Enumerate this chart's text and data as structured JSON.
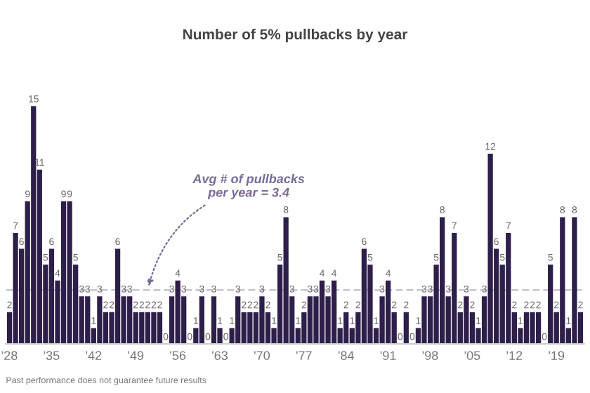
{
  "chart_data": {
    "type": "bar",
    "title": "Number of 5% pullbacks by year",
    "categories": [
      "'28",
      null,
      null,
      null,
      null,
      null,
      null,
      "'35",
      null,
      null,
      null,
      null,
      null,
      null,
      "'42",
      null,
      null,
      null,
      null,
      null,
      null,
      "'49",
      null,
      null,
      null,
      null,
      null,
      null,
      "'56",
      null,
      null,
      null,
      null,
      null,
      null,
      "'63",
      null,
      null,
      null,
      null,
      null,
      null,
      "'70",
      null,
      null,
      null,
      null,
      null,
      null,
      "'77",
      null,
      null,
      null,
      null,
      null,
      null,
      "'84",
      null,
      null,
      null,
      null,
      null,
      null,
      "'91",
      null,
      null,
      null,
      null,
      null,
      null,
      "'98",
      null,
      null,
      null,
      null,
      null,
      null,
      "'05",
      null,
      null,
      null,
      null,
      null,
      null,
      "'12",
      null,
      null,
      null,
      null,
      null,
      null,
      "'19",
      null,
      null,
      null,
      null
    ],
    "values": [
      2,
      7,
      6,
      9,
      15,
      11,
      5,
      6,
      4,
      9,
      9,
      5,
      3,
      3,
      1,
      3,
      2,
      2,
      6,
      3,
      3,
      2,
      2,
      2,
      2,
      2,
      0,
      3,
      4,
      3,
      0,
      1,
      3,
      0,
      3,
      1,
      0,
      1,
      3,
      2,
      2,
      2,
      3,
      2,
      1,
      5,
      8,
      3,
      1,
      2,
      3,
      3,
      4,
      3,
      4,
      1,
      2,
      1,
      2,
      6,
      5,
      1,
      3,
      4,
      2,
      0,
      2,
      0,
      1,
      3,
      3,
      5,
      8,
      3,
      7,
      2,
      3,
      2,
      1,
      3,
      12,
      6,
      5,
      7,
      2,
      1,
      2,
      2,
      2,
      0,
      5,
      2,
      8,
      1,
      8,
      2
    ],
    "color": "#2e1f4a",
    "data_labels": true,
    "relative": false,
    "ref_lines": [
      {
        "axis": "y",
        "value": 3.4,
        "label": "Avg # of pullbacks\nper year = 3.4",
        "color": "#c8c4d4",
        "line_style": "dashed"
      }
    ],
    "annotations": [
      "Past performance does not guarantee future results"
    ],
    "grid": false,
    "legend": false
  }
}
